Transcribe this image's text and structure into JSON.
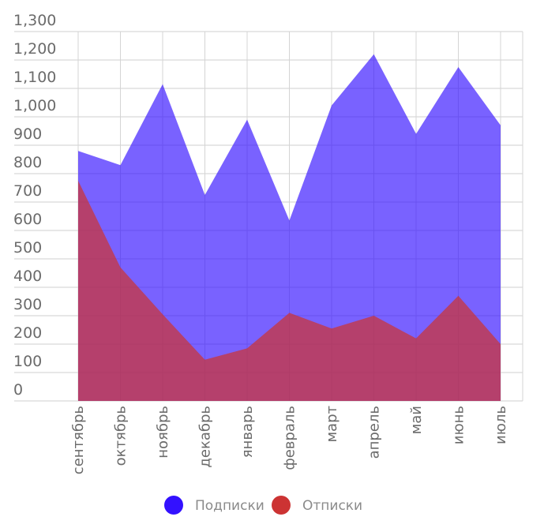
{
  "chart_data": {
    "type": "area",
    "categories": [
      "сентябрь",
      "октябрь",
      "ноябрь",
      "декабрь",
      "январь",
      "февраль",
      "март",
      "апрель",
      "май",
      "июнь",
      "июль"
    ],
    "series": [
      {
        "name": "Подписки",
        "color": "#3311ff",
        "values": [
          880,
          830,
          1115,
          725,
          990,
          635,
          1040,
          1220,
          940,
          1175,
          970
        ]
      },
      {
        "name": "Отписки",
        "color": "#cc3333",
        "values": [
          775,
          470,
          305,
          145,
          185,
          310,
          255,
          300,
          220,
          370,
          200
        ]
      }
    ],
    "y_ticks": [
      "0",
      "100",
      "200",
      "300",
      "400",
      "500",
      "600",
      "700",
      "800",
      "900",
      "1,000",
      "1,100",
      "1,200",
      "1,300"
    ],
    "ylim": [
      0,
      1300
    ],
    "grid": true,
    "legend_position": "bottom"
  }
}
